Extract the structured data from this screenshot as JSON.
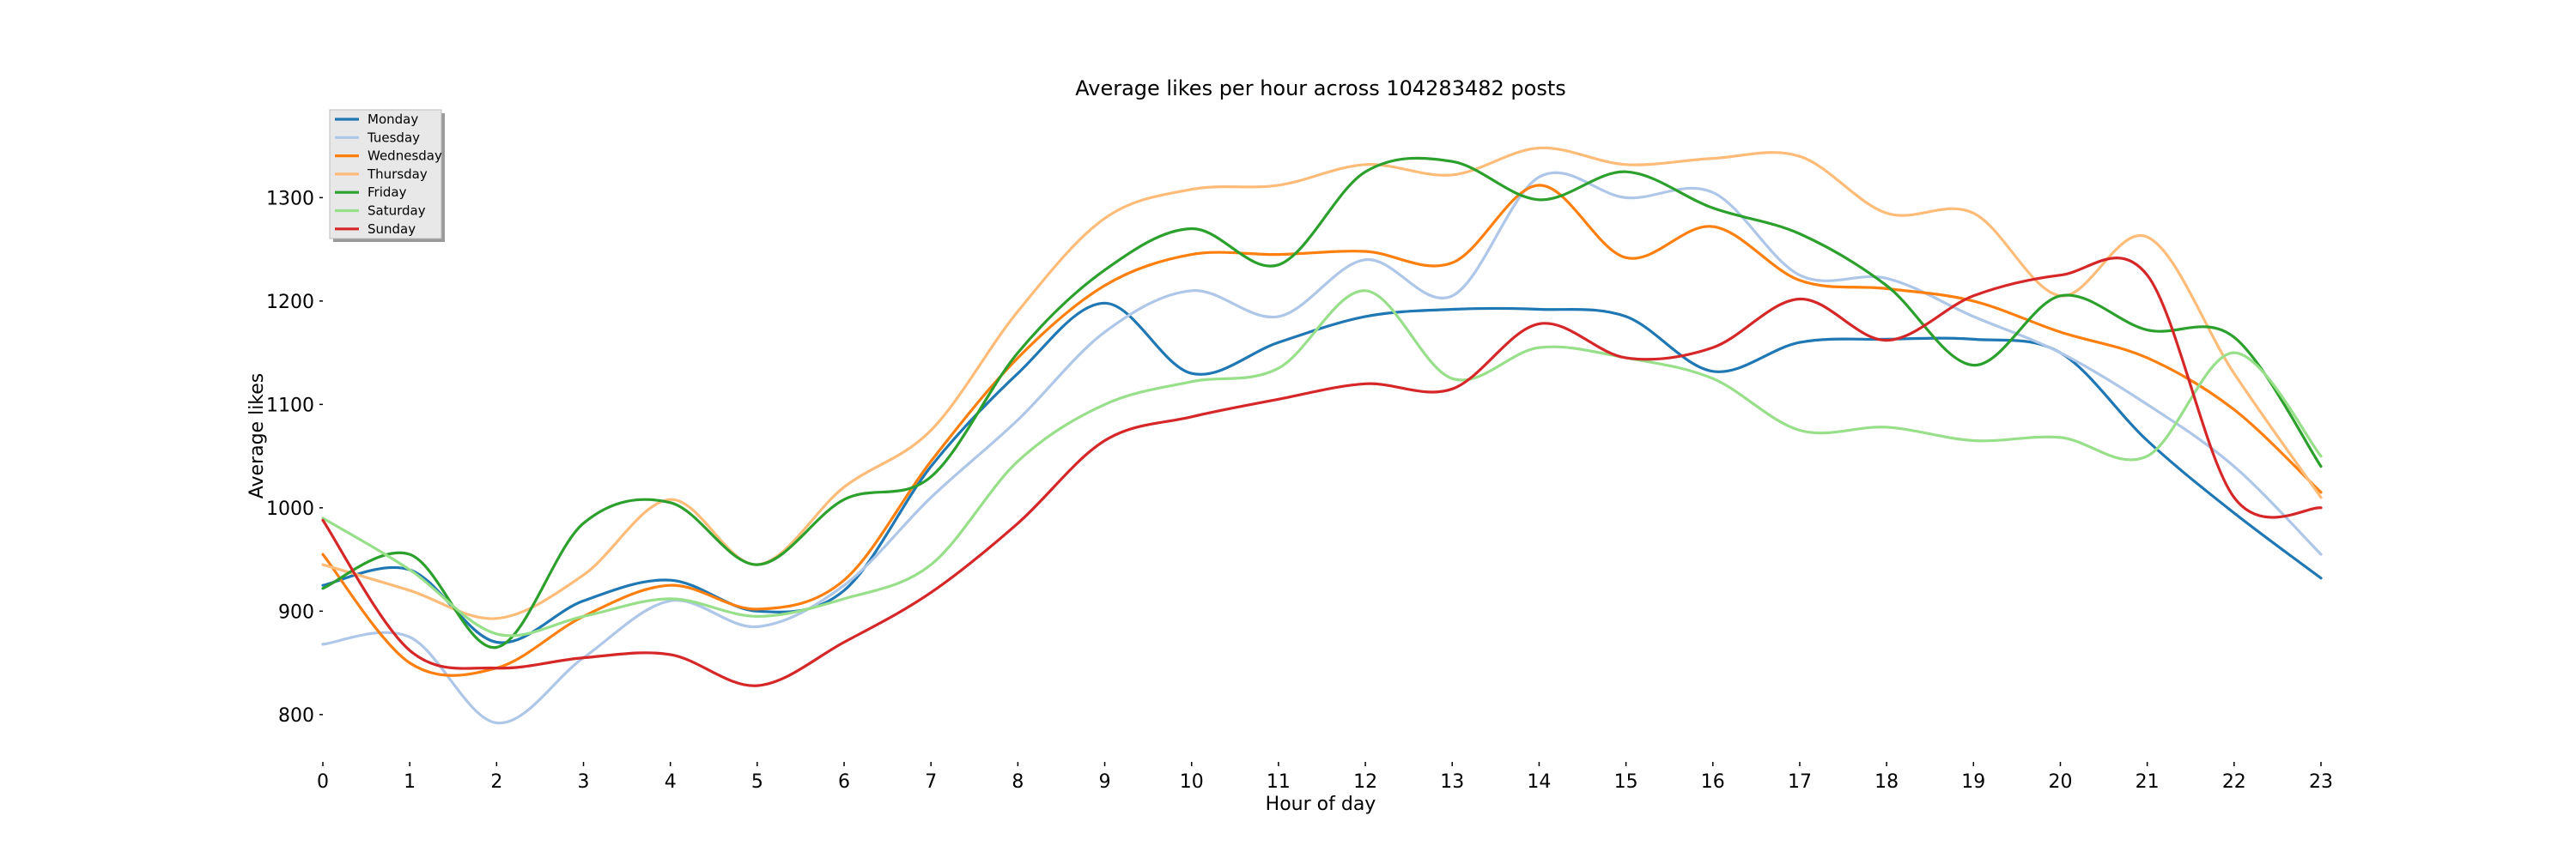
{
  "chart_data": {
    "type": "line",
    "title": "Average likes per hour across 104283482 posts",
    "xlabel": "Hour of day",
    "ylabel": "Average likes",
    "x": [
      0,
      1,
      2,
      3,
      4,
      5,
      6,
      7,
      8,
      9,
      10,
      11,
      12,
      13,
      14,
      15,
      16,
      17,
      18,
      19,
      20,
      21,
      22,
      23
    ],
    "xlim": [
      0,
      23
    ],
    "ylim": [
      765,
      1375
    ],
    "yticks": [
      800,
      900,
      1000,
      1100,
      1200,
      1300
    ],
    "grid": false,
    "legend_position": "top-left",
    "series": [
      {
        "name": "Monday",
        "color": "#1f77b4",
        "values": [
          925,
          940,
          870,
          910,
          930,
          900,
          920,
          1040,
          1130,
          1198,
          1130,
          1160,
          1185,
          1192,
          1192,
          1185,
          1132,
          1160,
          1163,
          1163,
          1150,
          1065,
          995,
          932
        ]
      },
      {
        "name": "Tuesday",
        "color": "#aec7e8",
        "values": [
          868,
          875,
          792,
          855,
          910,
          885,
          925,
          1010,
          1085,
          1170,
          1210,
          1185,
          1240,
          1205,
          1320,
          1300,
          1305,
          1225,
          1222,
          1185,
          1150,
          1100,
          1040,
          955
        ]
      },
      {
        "name": "Wednesday",
        "color": "#ff7f0e",
        "values": [
          955,
          850,
          845,
          895,
          925,
          902,
          930,
          1045,
          1145,
          1215,
          1245,
          1245,
          1248,
          1237,
          1312,
          1242,
          1272,
          1220,
          1212,
          1200,
          1170,
          1145,
          1095,
          1015
        ]
      },
      {
        "name": "Thursday",
        "color": "#ffbb78",
        "values": [
          945,
          920,
          893,
          935,
          1008,
          945,
          1020,
          1075,
          1190,
          1280,
          1308,
          1312,
          1332,
          1322,
          1348,
          1332,
          1338,
          1340,
          1285,
          1285,
          1205,
          1262,
          1130,
          1010
        ]
      },
      {
        "name": "Friday",
        "color": "#2ca02c",
        "values": [
          922,
          955,
          865,
          985,
          1005,
          945,
          1008,
          1030,
          1150,
          1230,
          1270,
          1235,
          1325,
          1335,
          1298,
          1325,
          1290,
          1265,
          1215,
          1138,
          1205,
          1172,
          1165,
          1040
        ]
      },
      {
        "name": "Saturday",
        "color": "#98df8a",
        "values": [
          990,
          940,
          878,
          895,
          912,
          895,
          912,
          945,
          1045,
          1100,
          1122,
          1135,
          1210,
          1125,
          1155,
          1145,
          1125,
          1075,
          1078,
          1065,
          1068,
          1050,
          1150,
          1050
        ]
      },
      {
        "name": "Sunday",
        "color": "#d62728",
        "values": [
          988,
          862,
          845,
          855,
          858,
          828,
          870,
          918,
          985,
          1065,
          1088,
          1105,
          1120,
          1115,
          1178,
          1145,
          1155,
          1202,
          1162,
          1205,
          1225,
          1225,
          1010,
          1000
        ]
      }
    ]
  }
}
